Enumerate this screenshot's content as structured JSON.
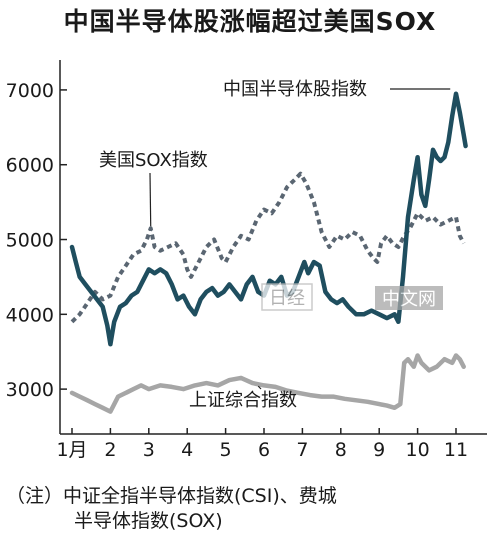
{
  "chart_data": {
    "type": "line",
    "title": "中国半导体股涨幅超过美国SOX",
    "x_tick_labels": [
      "1月",
      "2",
      "3",
      "4",
      "5",
      "6",
      "7",
      "8",
      "9",
      "10",
      "11"
    ],
    "y_tick_labels": [
      "3000",
      "4000",
      "5000",
      "6000",
      "7000"
    ],
    "ylim": [
      2400,
      7400
    ],
    "grid": false,
    "series": [
      {
        "name": "中国半导体股指数",
        "style": "solid",
        "color": "#1f4e5f",
        "points": [
          [
            1.0,
            4900
          ],
          [
            1.1,
            4700
          ],
          [
            1.2,
            4500
          ],
          [
            1.35,
            4400
          ],
          [
            1.5,
            4300
          ],
          [
            1.65,
            4200
          ],
          [
            1.8,
            4100
          ],
          [
            1.92,
            3850
          ],
          [
            2.0,
            3600
          ],
          [
            2.1,
            3900
          ],
          [
            2.25,
            4100
          ],
          [
            2.4,
            4150
          ],
          [
            2.55,
            4250
          ],
          [
            2.7,
            4300
          ],
          [
            2.85,
            4450
          ],
          [
            3.0,
            4600
          ],
          [
            3.15,
            4550
          ],
          [
            3.3,
            4600
          ],
          [
            3.45,
            4550
          ],
          [
            3.6,
            4400
          ],
          [
            3.75,
            4200
          ],
          [
            3.9,
            4250
          ],
          [
            4.05,
            4100
          ],
          [
            4.2,
            4000
          ],
          [
            4.35,
            4200
          ],
          [
            4.5,
            4300
          ],
          [
            4.65,
            4350
          ],
          [
            4.8,
            4250
          ],
          [
            4.95,
            4300
          ],
          [
            5.1,
            4400
          ],
          [
            5.25,
            4300
          ],
          [
            5.4,
            4200
          ],
          [
            5.55,
            4400
          ],
          [
            5.7,
            4500
          ],
          [
            5.85,
            4300
          ],
          [
            6.0,
            4250
          ],
          [
            6.15,
            4450
          ],
          [
            6.3,
            4400
          ],
          [
            6.45,
            4500
          ],
          [
            6.6,
            4250
          ],
          [
            6.75,
            4300
          ],
          [
            6.9,
            4500
          ],
          [
            7.05,
            4700
          ],
          [
            7.15,
            4550
          ],
          [
            7.3,
            4700
          ],
          [
            7.45,
            4650
          ],
          [
            7.6,
            4300
          ],
          [
            7.75,
            4200
          ],
          [
            7.9,
            4150
          ],
          [
            8.05,
            4200
          ],
          [
            8.2,
            4100
          ],
          [
            8.4,
            4000
          ],
          [
            8.6,
            4000
          ],
          [
            8.8,
            4050
          ],
          [
            9.0,
            4000
          ],
          [
            9.2,
            3950
          ],
          [
            9.4,
            4000
          ],
          [
            9.5,
            3900
          ],
          [
            9.62,
            4500
          ],
          [
            9.75,
            5300
          ],
          [
            9.9,
            5800
          ],
          [
            10.0,
            6100
          ],
          [
            10.1,
            5600
          ],
          [
            10.2,
            5450
          ],
          [
            10.3,
            5800
          ],
          [
            10.4,
            6200
          ],
          [
            10.5,
            6100
          ],
          [
            10.6,
            6050
          ],
          [
            10.7,
            6100
          ],
          [
            10.8,
            6300
          ],
          [
            10.9,
            6650
          ],
          [
            11.0,
            6950
          ],
          [
            11.1,
            6700
          ],
          [
            11.2,
            6400
          ],
          [
            11.25,
            6250
          ]
        ]
      },
      {
        "name": "美国SOX指数",
        "style": "dashed",
        "color": "#5a6672",
        "points": [
          [
            1.0,
            3900
          ],
          [
            1.2,
            4000
          ],
          [
            1.4,
            4150
          ],
          [
            1.6,
            4300
          ],
          [
            1.8,
            4200
          ],
          [
            2.0,
            4250
          ],
          [
            2.2,
            4500
          ],
          [
            2.4,
            4650
          ],
          [
            2.6,
            4800
          ],
          [
            2.8,
            4850
          ],
          [
            2.95,
            5000
          ],
          [
            3.05,
            5150
          ],
          [
            3.15,
            4900
          ],
          [
            3.3,
            4850
          ],
          [
            3.5,
            4900
          ],
          [
            3.7,
            4950
          ],
          [
            3.9,
            4800
          ],
          [
            4.0,
            4600
          ],
          [
            4.1,
            4500
          ],
          [
            4.3,
            4700
          ],
          [
            4.5,
            4900
          ],
          [
            4.7,
            5000
          ],
          [
            4.9,
            4750
          ],
          [
            5.0,
            4700
          ],
          [
            5.2,
            4900
          ],
          [
            5.4,
            5050
          ],
          [
            5.6,
            5000
          ],
          [
            5.8,
            5250
          ],
          [
            6.0,
            5400
          ],
          [
            6.2,
            5350
          ],
          [
            6.4,
            5500
          ],
          [
            6.6,
            5700
          ],
          [
            6.8,
            5800
          ],
          [
            6.95,
            5880
          ],
          [
            7.1,
            5750
          ],
          [
            7.3,
            5500
          ],
          [
            7.5,
            5100
          ],
          [
            7.7,
            4900
          ],
          [
            7.9,
            5050
          ],
          [
            8.1,
            5000
          ],
          [
            8.3,
            5100
          ],
          [
            8.5,
            5050
          ],
          [
            8.7,
            4850
          ],
          [
            8.85,
            4750
          ],
          [
            8.95,
            4700
          ],
          [
            9.05,
            4950
          ],
          [
            9.2,
            5050
          ],
          [
            9.35,
            4950
          ],
          [
            9.5,
            4900
          ],
          [
            9.65,
            5050
          ],
          [
            9.8,
            5150
          ],
          [
            10.0,
            5350
          ],
          [
            10.2,
            5250
          ],
          [
            10.4,
            5300
          ],
          [
            10.6,
            5200
          ],
          [
            10.8,
            5250
          ],
          [
            11.0,
            5300
          ],
          [
            11.1,
            5050
          ],
          [
            11.2,
            4950
          ]
        ]
      },
      {
        "name": "上证综合指数",
        "style": "solid",
        "color": "#a6a6a6",
        "points": [
          [
            1.0,
            2950
          ],
          [
            1.2,
            2900
          ],
          [
            1.4,
            2850
          ],
          [
            1.6,
            2800
          ],
          [
            1.8,
            2750
          ],
          [
            2.0,
            2700
          ],
          [
            2.2,
            2900
          ],
          [
            2.4,
            2950
          ],
          [
            2.6,
            3000
          ],
          [
            2.8,
            3050
          ],
          [
            3.0,
            3000
          ],
          [
            3.3,
            3050
          ],
          [
            3.6,
            3030
          ],
          [
            3.9,
            3000
          ],
          [
            4.2,
            3050
          ],
          [
            4.5,
            3080
          ],
          [
            4.8,
            3050
          ],
          [
            5.1,
            3120
          ],
          [
            5.4,
            3150
          ],
          [
            5.7,
            3080
          ],
          [
            6.0,
            3050
          ],
          [
            6.3,
            3030
          ],
          [
            6.6,
            2980
          ],
          [
            6.9,
            2950
          ],
          [
            7.2,
            2920
          ],
          [
            7.5,
            2900
          ],
          [
            7.8,
            2900
          ],
          [
            8.1,
            2870
          ],
          [
            8.4,
            2850
          ],
          [
            8.7,
            2830
          ],
          [
            9.0,
            2800
          ],
          [
            9.2,
            2780
          ],
          [
            9.4,
            2750
          ],
          [
            9.55,
            2800
          ],
          [
            9.65,
            3350
          ],
          [
            9.75,
            3400
          ],
          [
            9.9,
            3300
          ],
          [
            10.0,
            3450
          ],
          [
            10.1,
            3350
          ],
          [
            10.3,
            3250
          ],
          [
            10.5,
            3300
          ],
          [
            10.7,
            3400
          ],
          [
            10.9,
            3350
          ],
          [
            11.0,
            3450
          ],
          [
            11.1,
            3400
          ],
          [
            11.2,
            3300
          ]
        ]
      }
    ]
  },
  "note_line1": "（注）中证全指半导体指数(CSI)、费城",
  "note_line2": "半导体指数(SOX)",
  "watermark": {
    "brand_mark": "日经",
    "site": "中文网"
  }
}
